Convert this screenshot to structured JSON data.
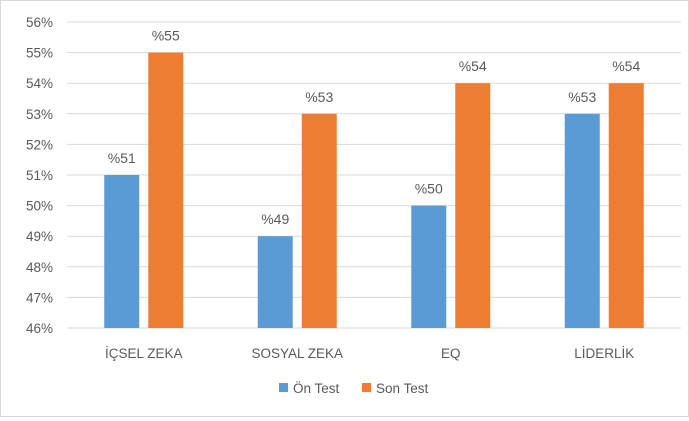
{
  "chart_data": {
    "type": "bar",
    "categories": [
      "İÇSEL ZEKA",
      "SOSYAL ZEKA",
      "EQ",
      "LİDERLİK"
    ],
    "series": [
      {
        "name": "Ön Test",
        "values": [
          51,
          49,
          50,
          53
        ],
        "labels": [
          "%51",
          "%49",
          "%50",
          "%53"
        ],
        "color": "#5b9bd5"
      },
      {
        "name": "Son Test",
        "values": [
          55,
          53,
          54,
          54
        ],
        "labels": [
          "%55",
          "%53",
          "%54",
          "%54"
        ],
        "color": "#ed7d31"
      }
    ],
    "ylim": [
      46,
      56
    ],
    "yticks": [
      46,
      47,
      48,
      49,
      50,
      51,
      52,
      53,
      54,
      55,
      56
    ],
    "ytick_labels": [
      "46%",
      "47%",
      "48%",
      "49%",
      "50%",
      "51%",
      "52%",
      "53%",
      "54%",
      "55%",
      "56%"
    ],
    "grid": true,
    "legend": "bottom",
    "gridline_color": "#d9d9d9",
    "text_color": "#595959"
  }
}
